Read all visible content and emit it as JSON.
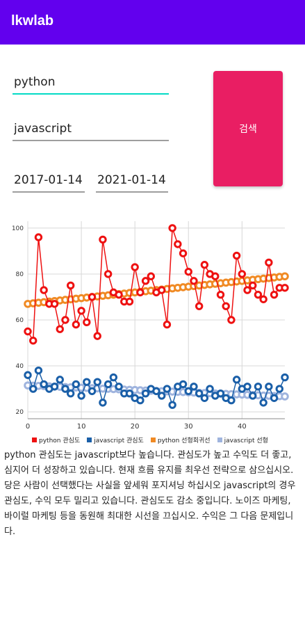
{
  "app": {
    "title": "lkwlab"
  },
  "inputs": {
    "keyword1": "python",
    "keyword2": "javascript",
    "start_date": "2017-01-14",
    "end_date": "2021-01-14"
  },
  "search_button": "검색",
  "colors": {
    "appbar": "#6200ee",
    "accent": "#03dac5",
    "button": "#e91e63",
    "python": "#ee1111",
    "javascript": "#1a5fa8",
    "python_trend": "#f08a24",
    "javascript_trend": "#9fb4de"
  },
  "chart_data": {
    "type": "line",
    "x_ticks": [
      0,
      10,
      20,
      30,
      40
    ],
    "y_ticks": [
      20,
      40,
      60,
      80,
      100
    ],
    "xlim": [
      0,
      48
    ],
    "ylim": [
      17,
      103
    ],
    "grid": true,
    "legend_position": "bottom",
    "series": [
      {
        "name": "python 관심도",
        "values": [
          55,
          51,
          96,
          73,
          67,
          67,
          56,
          60,
          75,
          58,
          64,
          59,
          70,
          53,
          95,
          80,
          72,
          71,
          68,
          68,
          83,
          72,
          77,
          79,
          72,
          73,
          58,
          100,
          93,
          89,
          81,
          77,
          66,
          84,
          80,
          79,
          71,
          66,
          60,
          88,
          80,
          73,
          75,
          71,
          69,
          85,
          71,
          74,
          74
        ]
      },
      {
        "name": "javascript 관심도",
        "values": [
          36,
          30,
          38,
          32,
          30,
          31,
          34,
          30,
          28,
          32,
          27,
          33,
          29,
          33,
          24,
          32,
          35,
          31,
          28,
          28,
          26,
          25,
          28,
          30,
          29,
          27,
          30,
          23,
          31,
          32,
          29,
          31,
          28,
          26,
          30,
          27,
          28,
          26,
          25,
          34,
          30,
          31,
          27,
          31,
          24,
          31,
          26,
          30,
          35
        ]
      },
      {
        "name": "python 선형회귀선",
        "values": [
          67,
          67.25,
          67.5,
          67.75,
          68,
          68.25,
          68.5,
          68.75,
          69,
          69.25,
          69.5,
          69.75,
          70,
          70.25,
          70.5,
          70.75,
          71,
          71.25,
          71.5,
          71.75,
          72,
          72.25,
          72.5,
          72.75,
          73,
          73.25,
          73.5,
          73.75,
          74,
          74.25,
          74.5,
          74.75,
          75,
          75.25,
          75.5,
          75.75,
          76,
          76.25,
          76.5,
          76.75,
          77,
          77.25,
          77.5,
          77.75,
          78,
          78.25,
          78.5,
          78.75,
          79
        ]
      },
      {
        "name": "javascript 선형",
        "values": [
          31.5,
          31.4,
          31.3,
          31.2,
          31.1,
          31,
          30.9,
          30.8,
          30.7,
          30.6,
          30.5,
          30.4,
          30.3,
          30.2,
          30.1,
          30,
          29.9,
          29.8,
          29.7,
          29.6,
          29.5,
          29.4,
          29.3,
          29.2,
          29.1,
          29,
          28.9,
          28.8,
          28.7,
          28.6,
          28.5,
          28.4,
          28.3,
          28.2,
          28.1,
          28,
          27.9,
          27.8,
          27.7,
          27.6,
          27.5,
          27.4,
          27.3,
          27.2,
          27.1,
          27,
          26.9,
          26.8,
          26.7
        ]
      }
    ]
  },
  "analysis_text": "python 관심도는 javascript보다 높습니다. 관심도가 높고 수익도 더 좋고, 심지어 더 성장하고 있습니다. 현재 흐름 유지를 최우선 전략으로 삼으십시오. 당은 사람이 선택했다는 사실을 앞세워 포지셔닝 하십시오 javascript의 경우 관심도, 수익 모두 밀리고 있습니다. 관심도도 감소 중입니다. 노이즈 마케팅, 바이럴 마케팅 등을 동원해 최대한 시선을 끄십시오. 수익은 그 다음 문제입니다."
}
